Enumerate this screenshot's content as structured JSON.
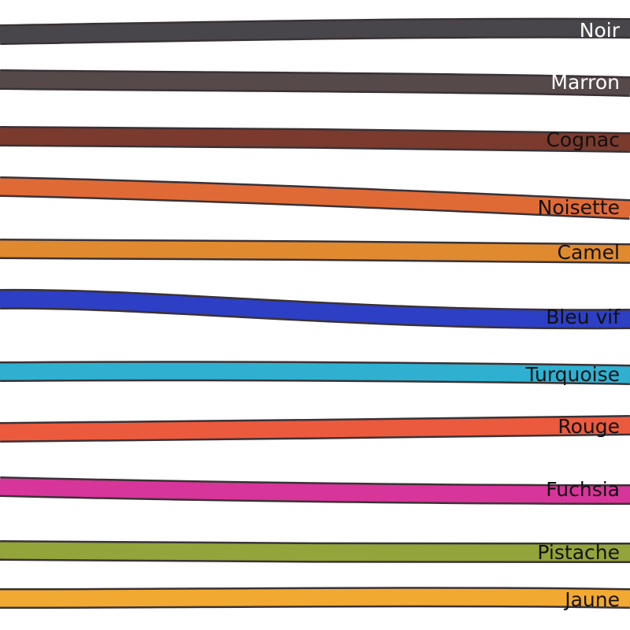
{
  "cords": [
    {
      "label": "Noir"
    },
    {
      "label": "Marron"
    },
    {
      "label": "Cognac"
    },
    {
      "label": "Noisette"
    },
    {
      "label": "Camel"
    },
    {
      "label": "Bleu vif"
    },
    {
      "label": "Turquoise"
    },
    {
      "label": "Rouge"
    },
    {
      "label": "Fuchsia"
    },
    {
      "label": "Pistache"
    },
    {
      "label": "Jaune"
    }
  ]
}
